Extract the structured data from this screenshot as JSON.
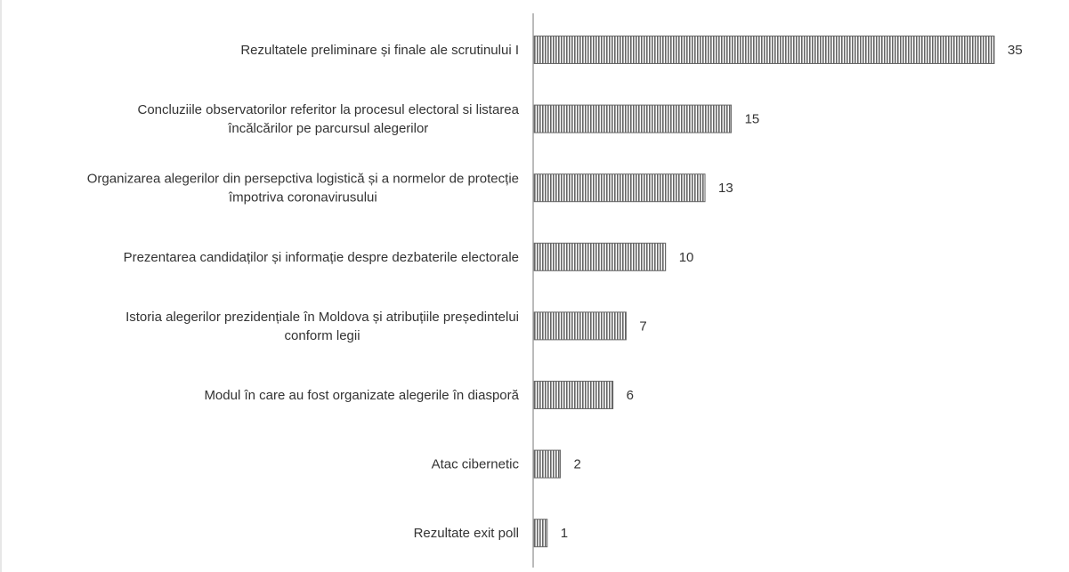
{
  "chart_data": {
    "type": "bar",
    "orientation": "horizontal",
    "title": "",
    "xlabel": "",
    "ylabel": "",
    "xlim": [
      0,
      35
    ],
    "grid": false,
    "legend": "none",
    "bar_color": "#666666",
    "bar_stripe_color": "#ffffff",
    "axis_color": "#bbbbbb",
    "data_labels": true,
    "categories": [
      [
        "Rezultatele preliminare și finale ale scrutinului I"
      ],
      [
        "Concluziile observatorilor referitor la procesul electoral si listarea",
        "încălcărilor pe parcursul alegerilor"
      ],
      [
        "Organizarea alegerilor din persepctiva logistică și a normelor de protecție",
        "împotriva coronavirusului"
      ],
      [
        "Prezentarea candidaților și informație despre dezbaterile electorale"
      ],
      [
        "Istoria alegerilor prezidențiale în Moldova și atribuțiile președintelui",
        "conform legii"
      ],
      [
        "Modul în care au fost organizate alegerile în diasporă"
      ],
      [
        "Atac cibernetic"
      ],
      [
        "Rezultate exit poll"
      ]
    ],
    "values": [
      35,
      15,
      13,
      10,
      7,
      6,
      2,
      1
    ]
  }
}
